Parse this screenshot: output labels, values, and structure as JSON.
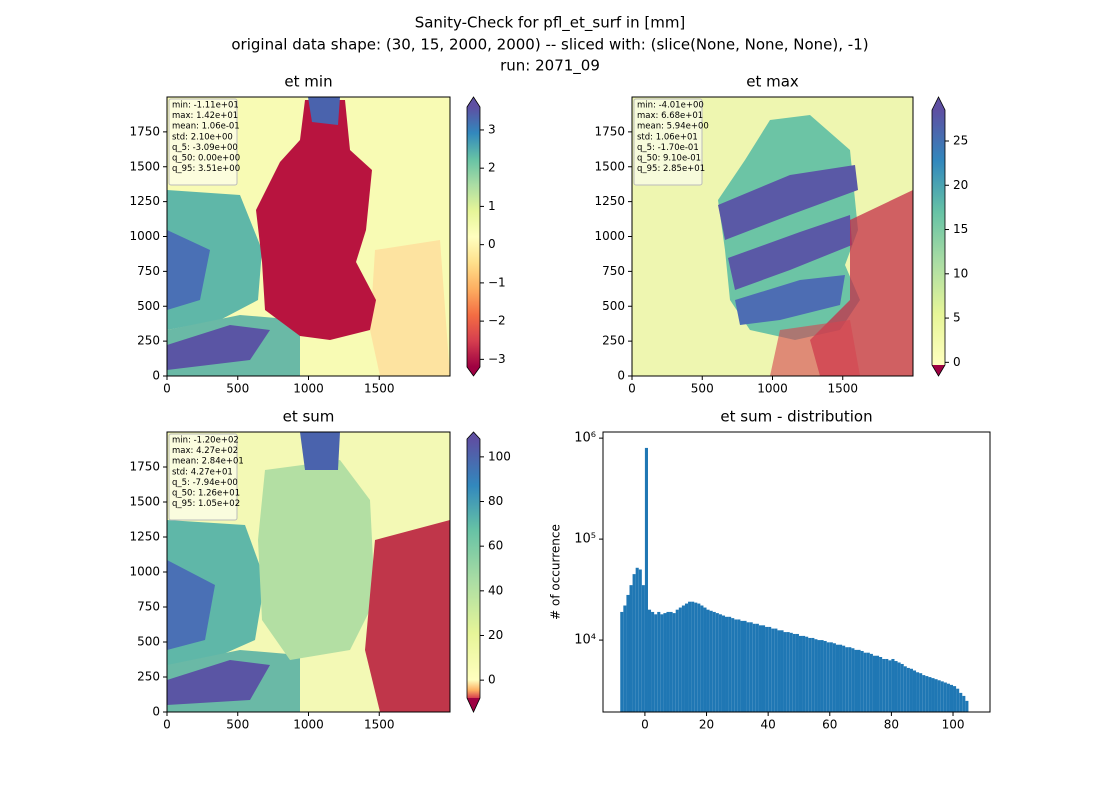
{
  "figure_title": [
    "Sanity-Check for pfl_et_surf in [mm]",
    "original data shape: (30, 15, 2000, 2000) -- sliced with: (slice(None, None, None), -1)",
    "run: 2071_09"
  ],
  "chart_data": [
    {
      "type": "heatmap",
      "title": "et min",
      "stats": [
        "min: -1.11e+01",
        "max: 1.42e+01",
        "mean: 1.06e-01",
        "std: 2.10e+00",
        "q_5: -3.09e+00",
        "q_50: 0.00e+00",
        "q_95: 3.51e+00"
      ],
      "xlim": [
        0,
        2000
      ],
      "ylim": [
        0,
        2000
      ],
      "xticks": [
        0,
        500,
        1000,
        1500
      ],
      "yticks": [
        0,
        250,
        500,
        750,
        1000,
        1250,
        1500,
        1750
      ],
      "clim": [
        -3.2,
        3.6
      ],
      "cticks": [
        {
          "value": -3,
          "label": "−3"
        },
        {
          "value": -2,
          "label": "−2"
        },
        {
          "value": -1,
          "label": "−1"
        },
        0,
        1,
        2,
        3
      ]
    },
    {
      "type": "heatmap",
      "title": "et max",
      "stats": [
        "min: -4.01e+00",
        "max: 6.68e+01",
        "mean: 5.94e+00",
        "std: 1.06e+01",
        "q_5: -1.70e-01",
        "q_50: 9.10e-01",
        "q_95: 2.85e+01"
      ],
      "xlim": [
        0,
        2000
      ],
      "ylim": [
        0,
        2000
      ],
      "xticks": [
        0,
        500,
        1000,
        1500
      ],
      "yticks": [
        0,
        250,
        500,
        750,
        1000,
        1250,
        1500,
        1750
      ],
      "clim": [
        -0.3,
        28.5
      ],
      "cticks": [
        0,
        5,
        10,
        15,
        20,
        25
      ]
    },
    {
      "type": "heatmap",
      "title": "et sum",
      "stats": [
        "min: -1.20e+02",
        "max: 4.27e+02",
        "mean: 2.84e+01",
        "std: 4.27e+01",
        "q_5: -7.94e+00",
        "q_50: 1.26e+01",
        "q_95: 1.05e+02"
      ],
      "xlim": [
        0,
        2000
      ],
      "ylim": [
        0,
        2000
      ],
      "xticks": [
        0,
        500,
        1000,
        1500
      ],
      "yticks": [
        0,
        250,
        500,
        750,
        1000,
        1250,
        1500,
        1750
      ],
      "clim": [
        -8,
        108
      ],
      "cticks": [
        0,
        20,
        40,
        60,
        80,
        100
      ]
    },
    {
      "type": "histogram",
      "title": "et sum - distribution",
      "ylabel": "# of occurrence",
      "color": "#1f77b4",
      "log_y": true,
      "xlim": [
        -13.6,
        112
      ],
      "ylim": [
        1940,
        1150000
      ],
      "xticks": [
        0,
        20,
        40,
        60,
        80,
        100
      ],
      "yticks": [
        {
          "value": 10000,
          "label": "10⁴"
        },
        {
          "value": 100000,
          "label": "10⁵"
        },
        {
          "value": 1000000,
          "label": "10⁶"
        }
      ],
      "bins": [
        -8,
        -7,
        -6,
        -5,
        -4,
        -3,
        -2,
        -1,
        0,
        1,
        2,
        3,
        4,
        5,
        6,
        7,
        8,
        9,
        10,
        11,
        12,
        13,
        14,
        15,
        16,
        17,
        18,
        19,
        20,
        21,
        22,
        23,
        24,
        25,
        26,
        27,
        28,
        29,
        30,
        31,
        32,
        33,
        34,
        35,
        36,
        37,
        38,
        39,
        40,
        41,
        42,
        43,
        44,
        45,
        46,
        47,
        48,
        49,
        50,
        51,
        52,
        53,
        54,
        55,
        56,
        57,
        58,
        59,
        60,
        61,
        62,
        63,
        64,
        65,
        66,
        67,
        68,
        69,
        70,
        71,
        72,
        73,
        74,
        75,
        76,
        77,
        78,
        79,
        80,
        81,
        82,
        83,
        84,
        85,
        86,
        87,
        88,
        89,
        90,
        91,
        92,
        93,
        94,
        95,
        96,
        97,
        98,
        99,
        100,
        101,
        102,
        103,
        104,
        105
      ],
      "counts": [
        19000,
        22000,
        28000,
        35000,
        45000,
        52000,
        50000,
        35000,
        800000,
        20000,
        19000,
        18000,
        19000,
        18000,
        18500,
        19000,
        19000,
        18500,
        20000,
        21000,
        22000,
        23000,
        24000,
        24000,
        23500,
        23000,
        22000,
        21000,
        20000,
        19500,
        19000,
        18500,
        18000,
        17500,
        17000,
        17000,
        16500,
        16000,
        16000,
        15500,
        15500,
        15000,
        15000,
        14500,
        14500,
        14000,
        14000,
        13500,
        13500,
        13000,
        13000,
        12500,
        12500,
        12000,
        12000,
        11800,
        11500,
        11500,
        11000,
        11000,
        10800,
        10500,
        10500,
        10200,
        10000,
        10000,
        9800,
        9500,
        9500,
        9300,
        9000,
        9000,
        8800,
        8500,
        8500,
        8300,
        8000,
        8000,
        7800,
        7500,
        7500,
        7300,
        7000,
        7000,
        6800,
        6500,
        6500,
        6300,
        6500,
        6200,
        6000,
        5800,
        5500,
        5300,
        5200,
        5000,
        4800,
        4700,
        4500,
        4400,
        4300,
        4200,
        4100,
        4000,
        3900,
        3800,
        3700,
        3600,
        3500,
        3300,
        3000,
        2800,
        2500
      ]
    }
  ]
}
